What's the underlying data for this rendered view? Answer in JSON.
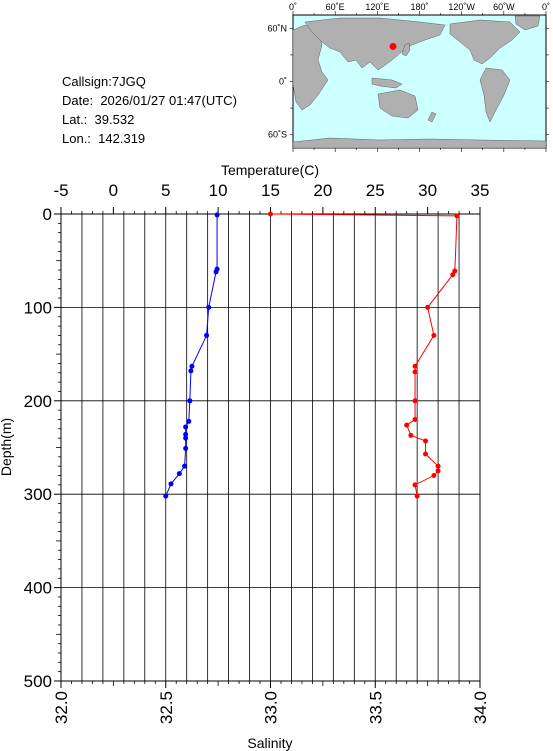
{
  "station": {
    "callsign_label": "Callsign:",
    "callsign": "7JGQ",
    "date_label": "Date:",
    "date": "2026/01/27 01:47(UTC)",
    "lat_label": "Lat.:",
    "lat": "39.532",
    "lon_label": "Lon.:",
    "lon": "142.319"
  },
  "map": {
    "lon_ticks": [
      "0˚",
      "60˚E",
      "120˚E",
      "180˚",
      "120˚W",
      "60˚W",
      "0˚"
    ],
    "lat_ticks": [
      "60˚N",
      "0˚",
      "60˚S"
    ],
    "ocean_color": "#ccffff",
    "land_color": "#b0b0b0",
    "marker_color": "#ff0000",
    "marker_lon": 142.319,
    "marker_lat": 39.532
  },
  "chart_data": {
    "type": "line",
    "ylabel": "Depth(m)",
    "ylim": [
      0,
      500
    ],
    "yticks": [
      "0",
      "100",
      "200",
      "300",
      "400",
      "500"
    ],
    "x_top": {
      "label": "Temperature(C)",
      "range": [
        -5,
        35
      ],
      "ticks": [
        "-5",
        "0",
        "5",
        "10",
        "15",
        "20",
        "25",
        "30",
        "35"
      ]
    },
    "x_bottom": {
      "label": "Salinity",
      "range": [
        32.0,
        34.0
      ],
      "ticks": [
        "32.0",
        "32.5",
        "33.0",
        "33.5",
        "34.0"
      ]
    },
    "grid": true,
    "series": [
      {
        "axis": "temperature",
        "color": "#0000ff",
        "depth": [
          1,
          59,
          62,
          100,
          130,
          163,
          168,
          200,
          222,
          228,
          236,
          240,
          251,
          270,
          278,
          289,
          302
        ],
        "values": [
          9.9,
          9.9,
          9.8,
          9.1,
          8.9,
          7.5,
          7.4,
          7.3,
          7.2,
          6.9,
          6.9,
          6.9,
          6.9,
          6.8,
          6.3,
          5.5,
          5.0
        ]
      },
      {
        "axis": "salinity",
        "color": "#ff0000",
        "depth": [
          0,
          2,
          61,
          65,
          100,
          130,
          163,
          169,
          200,
          220,
          226,
          237,
          243,
          257,
          270,
          275,
          280,
          290,
          302
        ],
        "values": [
          33.0,
          33.89,
          33.88,
          33.87,
          33.75,
          33.78,
          33.69,
          33.69,
          33.69,
          33.69,
          33.65,
          33.67,
          33.74,
          33.74,
          33.8,
          33.8,
          33.78,
          33.69,
          33.7
        ]
      }
    ]
  }
}
